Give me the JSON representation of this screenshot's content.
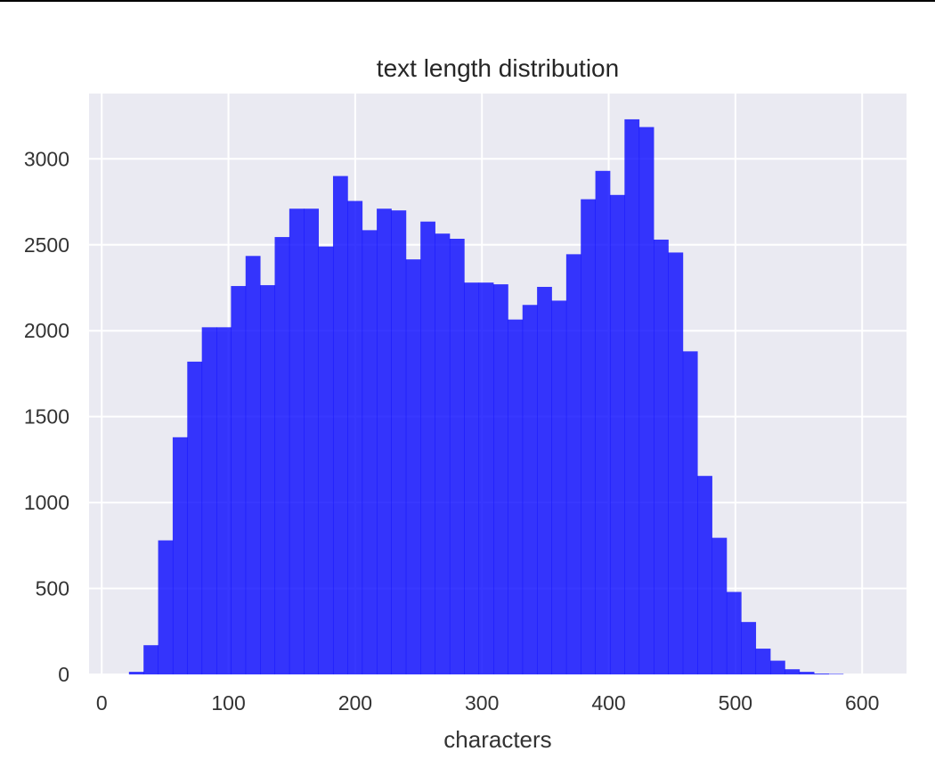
{
  "chart_data": {
    "type": "bar",
    "title": "text length distribution",
    "xlabel": "characters",
    "ylabel": "",
    "xlim": [
      -10,
      635
    ],
    "ylim": [
      0,
      3380
    ],
    "xticks": [
      0,
      100,
      200,
      300,
      400,
      500,
      600
    ],
    "yticks": [
      0,
      500,
      1000,
      1500,
      2000,
      2500,
      3000
    ],
    "grid": true,
    "bar_color": "#0000ff",
    "bar_opacity": 0.78,
    "background_color": "#eaeaf2",
    "grid_color": "#ffffff",
    "bin_width": 11.5,
    "bin_start": 21.5,
    "values": [
      15,
      170,
      780,
      1380,
      1820,
      2020,
      2020,
      2260,
      2435,
      2265,
      2545,
      2710,
      2710,
      2490,
      2900,
      2755,
      2585,
      2710,
      2700,
      2415,
      2635,
      2565,
      2535,
      2280,
      2280,
      2270,
      2065,
      2150,
      2255,
      2175,
      2445,
      2765,
      2930,
      2790,
      3230,
      3185,
      2530,
      2455,
      1880,
      1155,
      795,
      480,
      305,
      150,
      80,
      30,
      15,
      5,
      3
    ]
  }
}
